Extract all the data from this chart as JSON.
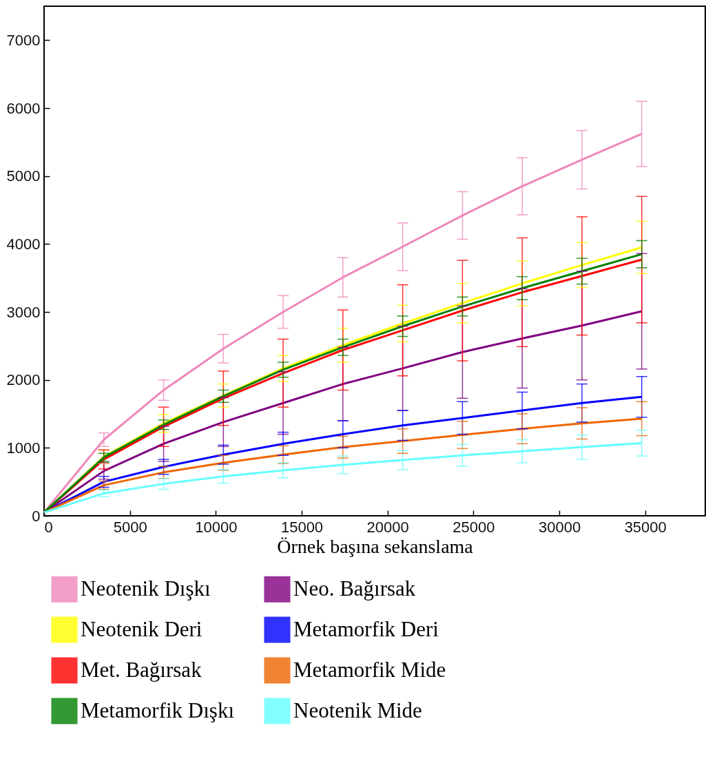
{
  "chart_data": {
    "type": "line",
    "xlabel": "Örnek başına sekanslama",
    "x": [
      0,
      3480,
      6960,
      10440,
      13920,
      17400,
      20880,
      24360,
      27840,
      31320,
      34800
    ],
    "xlim": [
      0,
      38500
    ],
    "xticks": [
      0,
      5000,
      10000,
      15000,
      20000,
      25000,
      30000,
      35000
    ],
    "ylim": [
      0,
      7500
    ],
    "yticks": [
      0,
      1000,
      2000,
      3000,
      4000,
      5000,
      6000,
      7000
    ],
    "grid": false,
    "legend": "bottom",
    "line_style": "solid",
    "series": [
      {
        "name": "Neotenik Dışkı",
        "color": "#ee88bb",
        "values": [
          50,
          1120,
          1850,
          2460,
          3000,
          3510,
          3960,
          4420,
          4850,
          5240,
          5620
        ],
        "errors": [
          null,
          100,
          150,
          210,
          240,
          290,
          350,
          350,
          420,
          430,
          480
        ]
      },
      {
        "name": "Neo. Bağırsak",
        "color": "#800080",
        "values": [
          50,
          660,
          1060,
          1380,
          1660,
          1940,
          2170,
          2410,
          2610,
          2800,
          3010
        ],
        "errors": [
          null,
          120,
          260,
          360,
          460,
          540,
          620,
          680,
          730,
          800,
          850
        ]
      },
      {
        "name": "Neotenik Deri",
        "color": "#ffff00",
        "values": [
          50,
          870,
          1360,
          1770,
          2170,
          2510,
          2830,
          3130,
          3420,
          3690,
          3950
        ],
        "errors": [
          null,
          100,
          130,
          170,
          190,
          250,
          270,
          290,
          330,
          330,
          385
        ]
      },
      {
        "name": "Metamorfik Deri",
        "color": "#0000ff",
        "values": [
          50,
          500,
          720,
          900,
          1060,
          1200,
          1330,
          1440,
          1550,
          1660,
          1750
        ],
        "errors": [
          null,
          80,
          110,
          140,
          170,
          200,
          220,
          240,
          270,
          280,
          300
        ]
      },
      {
        "name": "Met. Bağırsak",
        "color": "#ff0000",
        "values": [
          50,
          830,
          1310,
          1730,
          2100,
          2440,
          2730,
          3020,
          3290,
          3530,
          3770
        ],
        "errors": [
          null,
          140,
          290,
          400,
          500,
          590,
          670,
          740,
          800,
          870,
          930
        ]
      },
      {
        "name": "Metamorfik Mide",
        "color": "#ee6600",
        "values": [
          50,
          450,
          640,
          780,
          900,
          1010,
          1100,
          1190,
          1280,
          1360,
          1430
        ],
        "errors": [
          null,
          60,
          90,
          110,
          130,
          160,
          180,
          200,
          220,
          230,
          250
        ]
      },
      {
        "name": "Metamorfik Dışkı",
        "color": "#008000",
        "values": [
          50,
          860,
          1340,
          1760,
          2150,
          2480,
          2790,
          3080,
          3350,
          3600,
          3850
        ],
        "errors": [
          null,
          60,
          70,
          90,
          110,
          120,
          150,
          140,
          170,
          190,
          200
        ]
      },
      {
        "name": "Neotenik Mide",
        "color": "#66ffff",
        "values": [
          50,
          330,
          470,
          580,
          670,
          750,
          820,
          890,
          950,
          1010,
          1070
        ],
        "errors": [
          null,
          50,
          80,
          100,
          110,
          130,
          140,
          160,
          170,
          180,
          190
        ]
      }
    ]
  }
}
